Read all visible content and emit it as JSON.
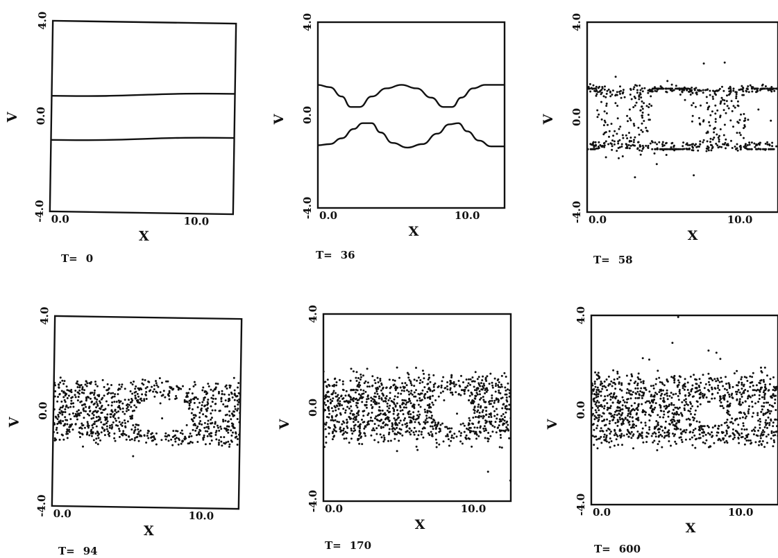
{
  "colors": {
    "ink": "#111111",
    "paper": "#ffffff"
  },
  "chart_data": [
    {
      "type": "line",
      "t_label": "T=",
      "t_value": "0",
      "xlabel": "X",
      "ylabel": "V",
      "xlim": [
        0,
        12.5
      ],
      "ylim": [
        -4,
        4
      ],
      "x_ticks": [
        "0.0",
        "10.0"
      ],
      "y_ticks": [
        "4.0",
        "0.0",
        "-4.0"
      ],
      "series": [
        {
          "x": [
            0,
            12.5
          ],
          "y": [
            0.85,
            1.05
          ]
        },
        {
          "x": [
            0,
            12.5
          ],
          "y": [
            -1.0,
            -0.8
          ]
        }
      ]
    },
    {
      "type": "line",
      "t_label": "T=",
      "t_value": "36",
      "xlabel": "X",
      "ylabel": "V",
      "xlim": [
        0,
        12.5
      ],
      "ylim": [
        -4,
        4
      ],
      "x_ticks": [
        "0.0",
        "10.0"
      ],
      "y_ticks": [
        "4.0",
        "0.0",
        "-4.0"
      ],
      "series": [
        {
          "x": [
            0,
            0.8,
            1.6,
            2.2,
            2.8,
            3.6,
            4.6,
            5.6,
            6.6,
            7.6,
            8.4,
            9.0,
            9.6,
            10.4,
            11.2,
            12.0,
            12.5
          ],
          "y": [
            1.3,
            1.2,
            0.8,
            0.35,
            0.35,
            0.8,
            1.15,
            1.3,
            1.15,
            0.75,
            0.35,
            0.35,
            0.75,
            1.15,
            1.3,
            1.3,
            1.3
          ]
        },
        {
          "x": [
            0,
            0.8,
            1.6,
            2.4,
            3.0,
            3.6,
            4.2,
            5.0,
            6.0,
            7.0,
            8.0,
            8.8,
            9.4,
            10.0,
            10.8,
            11.6,
            12.5
          ],
          "y": [
            -1.3,
            -1.25,
            -1.0,
            -0.6,
            -0.35,
            -0.35,
            -0.75,
            -1.2,
            -1.4,
            -1.25,
            -0.8,
            -0.4,
            -0.35,
            -0.7,
            -1.1,
            -1.35,
            -1.35
          ]
        }
      ]
    },
    {
      "type": "scatter",
      "t_label": "T=",
      "t_value": "58",
      "xlabel": "X",
      "ylabel": "V",
      "xlim": [
        0,
        12.5
      ],
      "ylim": [
        -4,
        4
      ],
      "x_ticks": [
        "0.0",
        "10.0"
      ],
      "y_ticks": [
        "4.0",
        "0.0",
        "-4.0"
      ],
      "series": []
    },
    {
      "type": "scatter",
      "t_label": "T=",
      "t_value": "94",
      "xlabel": "X",
      "ylabel": "V",
      "xlim": [
        0,
        12.5
      ],
      "ylim": [
        -4,
        4
      ],
      "x_ticks": [
        "0.0",
        "10.0"
      ],
      "y_ticks": [
        "4.0",
        "0.0",
        "-4.0"
      ],
      "series": []
    },
    {
      "type": "scatter",
      "t_label": "T=",
      "t_value": "170",
      "xlabel": "X",
      "ylabel": "V",
      "xlim": [
        0,
        12.5
      ],
      "ylim": [
        -4,
        4
      ],
      "x_ticks": [
        "0.0",
        "10.0"
      ],
      "y_ticks": [
        "4.0",
        "0.0",
        "-4.0"
      ],
      "series": []
    },
    {
      "type": "scatter",
      "t_label": "T=",
      "t_value": "600",
      "xlabel": "X",
      "ylabel": "V",
      "xlim": [
        0,
        12.5
      ],
      "ylim": [
        -4,
        4
      ],
      "x_ticks": [
        "0.0",
        "10.0"
      ],
      "y_ticks": [
        "4.0",
        "0.0",
        "-4.0"
      ],
      "series": []
    }
  ]
}
